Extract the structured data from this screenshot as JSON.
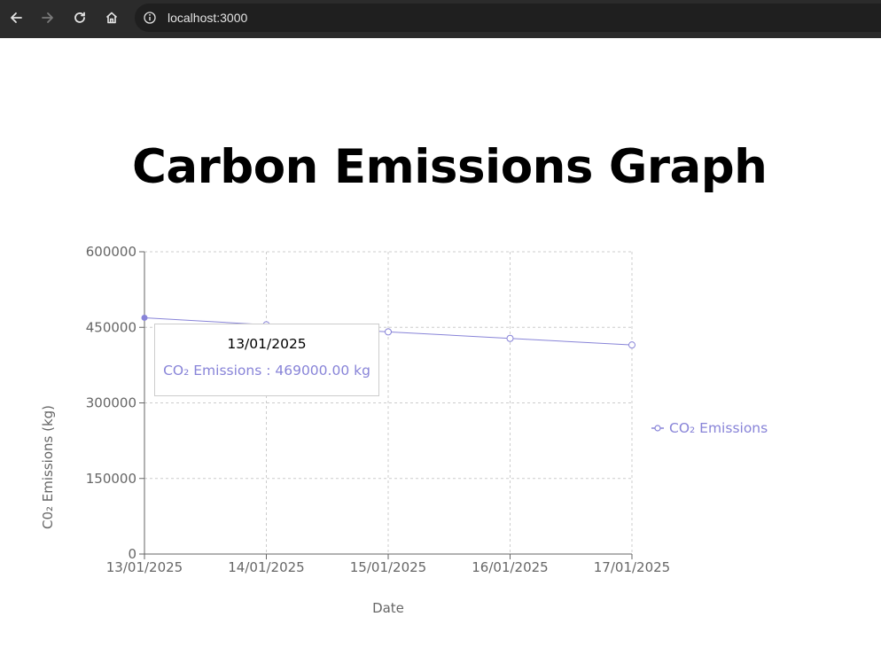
{
  "browser": {
    "url": "localhost:3000"
  },
  "page": {
    "title": "Carbon Emissions Graph"
  },
  "chart_data": {
    "type": "line",
    "x": [
      "13/01/2025",
      "14/01/2025",
      "15/01/2025",
      "16/01/2025",
      "17/01/2025"
    ],
    "series": [
      {
        "name": "CO₂ Emissions",
        "values": [
          469000,
          455000,
          441000,
          428000,
          415000
        ],
        "color": "#8884d8"
      }
    ],
    "xlabel": "Date",
    "ylabel": "C0₂ Emissions (kg)",
    "ylim": [
      0,
      600000
    ],
    "yticks": [
      "0",
      "150000",
      "300000",
      "450000",
      "600000"
    ],
    "grid": true,
    "legend": "right",
    "tooltip": {
      "label": "13/01/2025",
      "item": "CO₂ Emissions : 469000.00 kg"
    }
  },
  "colors": {
    "series": "#8884d8",
    "axis": "#666666",
    "grid": "#cccccc"
  }
}
